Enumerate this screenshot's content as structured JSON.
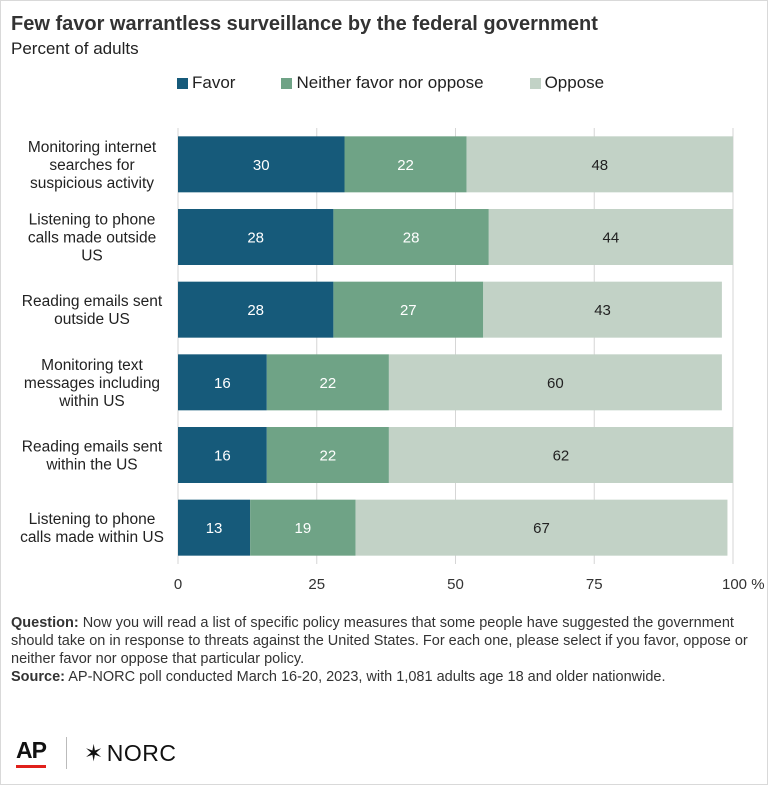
{
  "header": {
    "title": "Few favor warrantless surveillance by the federal government",
    "subtitle": "Percent of adults"
  },
  "legend": [
    {
      "label": "Favor",
      "color": "#165a7a"
    },
    {
      "label": "Neither favor nor oppose",
      "color": "#6fa386"
    },
    {
      "label": "Oppose",
      "color": "#c2d2c6"
    }
  ],
  "chart_data": {
    "type": "bar",
    "orientation": "horizontal",
    "stacked": true,
    "categories": [
      [
        "Monitoring internet",
        "searches for",
        "suspicious activity"
      ],
      [
        "Listening to phone",
        "calls made outside",
        "US"
      ],
      [
        "Reading emails sent",
        "outside US"
      ],
      [
        "Monitoring text",
        "messages including",
        "within US"
      ],
      [
        "Reading emails sent",
        "within the US"
      ],
      [
        "Listening to phone",
        "calls made within US"
      ]
    ],
    "series": [
      {
        "name": "Favor",
        "color": "#165a7a",
        "label_color": "#ffffff",
        "values": [
          30,
          28,
          28,
          16,
          16,
          13
        ]
      },
      {
        "name": "Neither favor nor oppose",
        "color": "#6fa386",
        "label_color": "#ffffff",
        "values": [
          22,
          28,
          27,
          22,
          22,
          19
        ]
      },
      {
        "name": "Oppose",
        "color": "#c2d2c6",
        "label_color": "#222222",
        "values": [
          48,
          44,
          43,
          60,
          62,
          67
        ]
      }
    ],
    "xlim": [
      0,
      100
    ],
    "xticks": [
      0,
      25,
      50,
      75,
      100
    ],
    "xtick_labels": [
      "0",
      "25",
      "50",
      "75",
      "100 %"
    ],
    "grid": true,
    "legend_position": "top"
  },
  "footnote": {
    "question_label": "Question:",
    "question_text": " Now you will read a list of specific policy measures that some people have suggested the government should take on in response to threats against the United States. For each one, please select if you favor, oppose or neither favor nor oppose that particular policy.",
    "source_label": "Source:",
    "source_text": " AP-NORC poll conducted March 16-20, 2023, with 1,081 adults age 18 and older nationwide."
  },
  "logos": {
    "ap": "AP",
    "norc_star": "✶",
    "norc": "NORC"
  }
}
